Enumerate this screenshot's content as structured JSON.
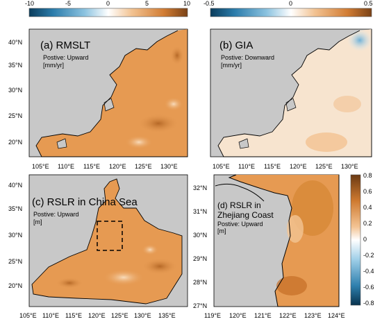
{
  "colorbar_top_left": {
    "ticks": [
      "-10",
      "-5",
      "0",
      "5",
      "10"
    ]
  },
  "colorbar_top_right": {
    "ticks": [
      "-0.5",
      "0",
      "0.5"
    ]
  },
  "colorbar_right": {
    "ticks": [
      "0.8",
      "0.6",
      "0.4",
      "0.2",
      "0",
      "-0.2",
      "-0.4",
      "-0.6",
      "-0.8"
    ]
  },
  "panels": {
    "a": {
      "title": "(a) RMSLT",
      "note1": "Postive: Upward",
      "note2": "[mm/yr]",
      "lat_labels": [
        "40°N",
        "35°N",
        "30°N",
        "25°N",
        "20°N"
      ],
      "lon_labels": [
        "105°E",
        "110°E",
        "115°E",
        "120°E",
        "125°E",
        "130°E"
      ]
    },
    "b": {
      "title": "(b) GIA",
      "note1": "Postive: Downward",
      "note2": "[mm/yr]",
      "lon_labels": [
        "105°E",
        "110°E",
        "115°E",
        "120°E",
        "125°E",
        "130°E"
      ]
    },
    "c": {
      "title": "(c) RSLR in China Sea",
      "note1": "Postive: Upward",
      "note2": "[m]",
      "lat_labels": [
        "40°N",
        "35°N",
        "30°N",
        "25°N",
        "20°N"
      ],
      "lon_labels": [
        "105°E",
        "110°E",
        "115°E",
        "120°E",
        "125°E",
        "130°E",
        "135°E"
      ]
    },
    "d": {
      "title_line1": "(d) RSLR in",
      "title_line2": "Zhejiang Coast",
      "note1": "Postive: Upward",
      "note2": "[m]",
      "lat_labels": [
        "32°N",
        "31°N",
        "30°N",
        "29°N",
        "28°N",
        "27°N"
      ],
      "lon_labels": [
        "119°E",
        "120°E",
        "121°E",
        "122°E",
        "123°E",
        "124°E"
      ]
    }
  },
  "colors": {
    "land": "#c8c8c8",
    "ocean_orange": "#e69a52",
    "ocean_light": "#f3c494",
    "ocean_dark": "#c97532",
    "gia_pale": "#f7e4cf",
    "cb_diverging": [
      "#0b3d5c",
      "#1f6e96",
      "#3f93bf",
      "#7ab8da",
      "#b4d8ec",
      "#ffffff",
      "#f6d7b4",
      "#efb57e",
      "#e0914b",
      "#c36f2a",
      "#8a4a1b"
    ]
  }
}
